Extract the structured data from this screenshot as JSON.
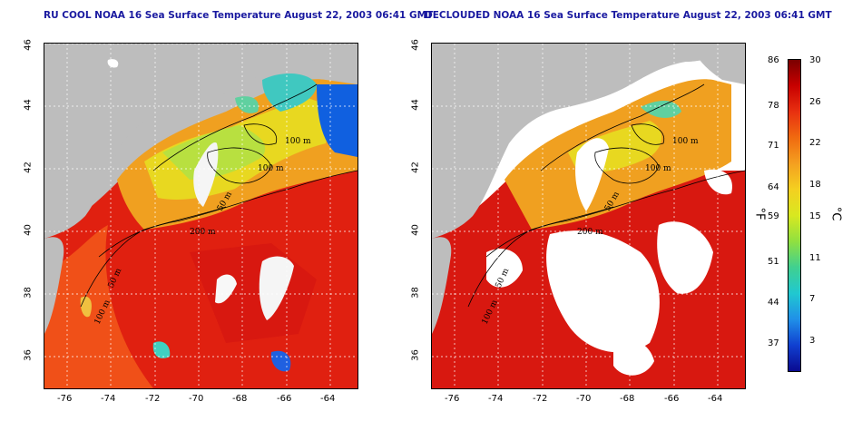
{
  "panels": [
    {
      "title": "RU COOL NOAA 16 Sea Surface Temperature August 22, 2003 06:41 GMT"
    },
    {
      "title": "DECLOUDED NOAA 16 Sea Surface Temperature August 22, 2003 06:41 GMT"
    }
  ],
  "axes": {
    "x_ticks": [
      "-76",
      "-74",
      "-72",
      "-70",
      "-68",
      "-66",
      "-64"
    ],
    "y_ticks": [
      "46",
      "44",
      "42",
      "40",
      "38",
      "36"
    ]
  },
  "contours": {
    "labels": [
      "100 m",
      "100 m",
      "50 m",
      "200 m",
      "50 m",
      "100 m"
    ]
  },
  "colorbar": {
    "fahrenheit_ticks": [
      "86",
      "78",
      "71",
      "64",
      "59",
      "51",
      "44",
      "37"
    ],
    "celsius_ticks": [
      "30",
      "26",
      "22",
      "18",
      "15",
      "11",
      "7",
      "3"
    ],
    "left_unit": "°F",
    "right_unit": "°C",
    "colors": [
      "#7a0000",
      "#c80000",
      "#e83010",
      "#f06a10",
      "#f4a020",
      "#f4d020",
      "#d8e820",
      "#90e040",
      "#40d090",
      "#20c8d0",
      "#2090e8",
      "#1040d0",
      "#0a0a90"
    ]
  }
}
